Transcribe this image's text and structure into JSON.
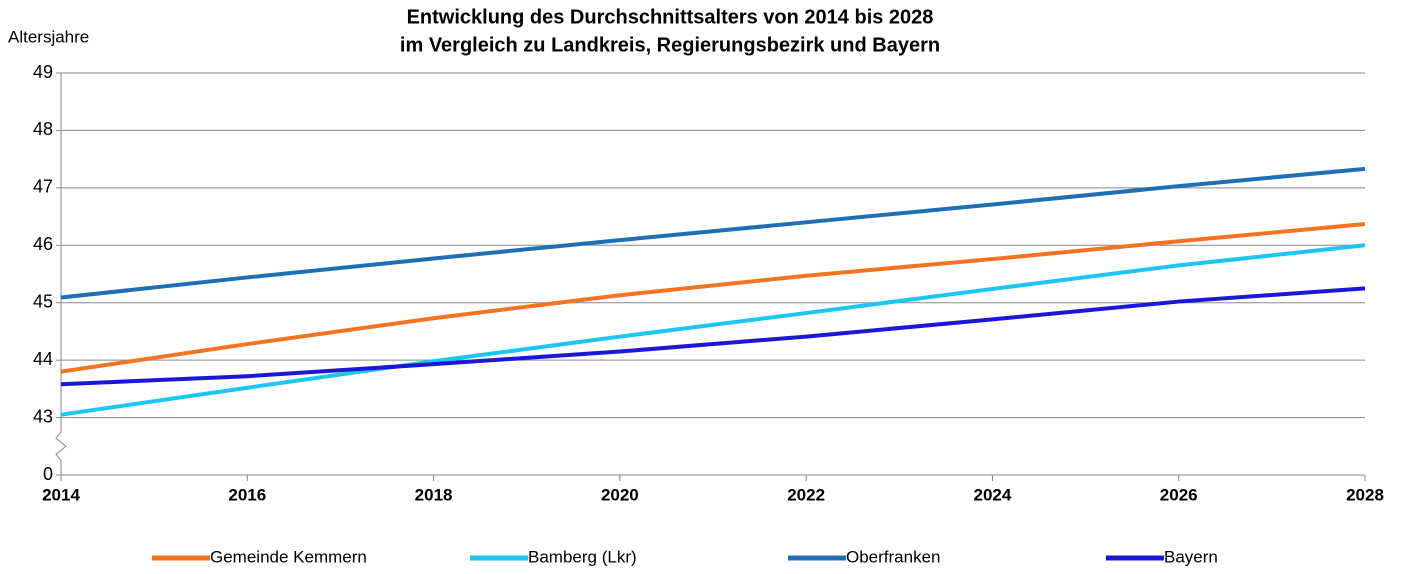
{
  "chart_data": {
    "type": "line",
    "title": "Entwicklung des Durchschnittsalters von 2014 bis 2028",
    "subtitle": "im Vergleich zu Landkreis, Regierungsbezirk und Bayern",
    "y_label": "Altersjahre",
    "x": [
      2014,
      2016,
      2018,
      2020,
      2022,
      2024,
      2026,
      2028
    ],
    "series": [
      {
        "name": "Gemeinde Kemmern",
        "color": "#f47321",
        "values": [
          43.8,
          44.28,
          44.73,
          45.13,
          45.47,
          45.76,
          46.07,
          46.37
        ]
      },
      {
        "name": "Bamberg (Lkr)",
        "color": "#1dc6f0",
        "values": [
          43.05,
          43.52,
          43.98,
          44.41,
          44.82,
          45.24,
          45.65,
          46.0
        ]
      },
      {
        "name": "Oberfranken",
        "color": "#1f6fb5",
        "values": [
          45.09,
          45.44,
          45.77,
          46.09,
          46.4,
          46.71,
          47.03,
          47.33
        ]
      },
      {
        "name": "Bayern",
        "color": "#1a18d6",
        "values": [
          43.58,
          43.72,
          43.93,
          44.15,
          44.41,
          44.71,
          45.02,
          45.25
        ]
      }
    ],
    "xlim": [
      2014,
      2028
    ],
    "xticks": [
      2014,
      2016,
      2018,
      2020,
      2022,
      2024,
      2026,
      2028
    ],
    "ylim": [
      0,
      49
    ],
    "yticks": [
      0,
      43,
      44,
      45,
      46,
      47,
      48,
      49
    ],
    "axis_break": true,
    "grid": true,
    "legend": "bottom"
  }
}
